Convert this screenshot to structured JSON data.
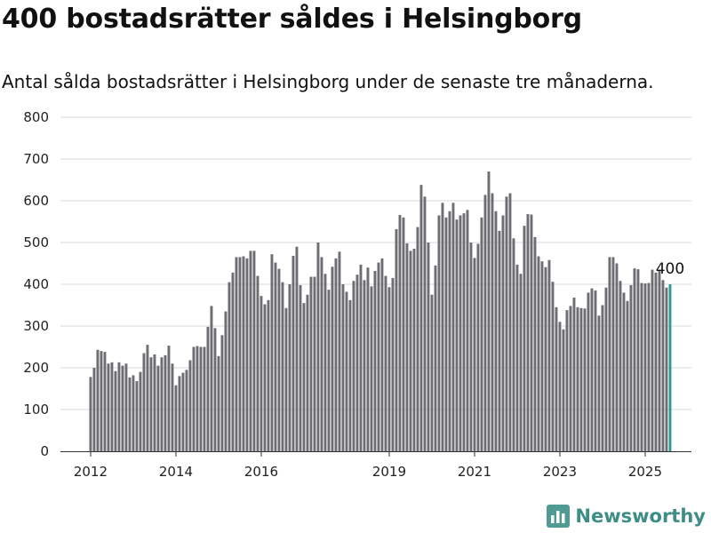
{
  "title": "400 bostadsrätter såldes i Helsingborg",
  "subtitle": "Antal sålda bostadsrätter i Helsingborg under de senaste tre månaderna.",
  "brand": {
    "name": "Newsworthy",
    "icon": "newsworthy-logo-icon"
  },
  "colors": {
    "bar": "#6e6d73",
    "highlight": "#2a9d8f",
    "grid": "#d9d9d9",
    "brand": "#3e8e87"
  },
  "chart_data": {
    "type": "bar",
    "ylim": [
      0,
      800
    ],
    "yticks": [
      0,
      100,
      200,
      300,
      400,
      500,
      600,
      700,
      800
    ],
    "x_tick_labels": [
      {
        "label": "2012",
        "index": 0
      },
      {
        "label": "2014",
        "index": 24
      },
      {
        "label": "2016",
        "index": 48
      },
      {
        "label": "2019",
        "index": 84
      },
      {
        "label": "2021",
        "index": 108
      },
      {
        "label": "2023",
        "index": 132
      },
      {
        "label": "2025",
        "index": 156
      }
    ],
    "values": [
      178,
      200,
      243,
      240,
      238,
      210,
      213,
      192,
      213,
      205,
      210,
      177,
      182,
      168,
      190,
      235,
      255,
      225,
      232,
      205,
      225,
      230,
      253,
      210,
      158,
      180,
      188,
      195,
      218,
      250,
      252,
      250,
      250,
      298,
      348,
      295,
      228,
      278,
      335,
      405,
      428,
      465,
      465,
      467,
      462,
      480,
      480,
      420,
      372,
      352,
      362,
      472,
      452,
      437,
      405,
      343,
      400,
      468,
      490,
      398,
      355,
      375,
      418,
      418,
      500,
      465,
      425,
      387,
      442,
      462,
      478,
      400,
      382,
      362,
      408,
      423,
      447,
      410,
      440,
      395,
      432,
      452,
      462,
      420,
      393,
      415,
      532,
      566,
      560,
      498,
      480,
      485,
      537,
      638,
      610,
      500,
      375,
      445,
      565,
      595,
      560,
      575,
      595,
      555,
      565,
      570,
      578,
      500,
      463,
      497,
      560,
      614,
      670,
      618,
      575,
      528,
      565,
      610,
      618,
      510,
      447,
      425,
      540,
      568,
      567,
      513,
      467,
      455,
      441,
      458,
      406,
      345,
      310,
      292,
      338,
      348,
      368,
      345,
      343,
      342,
      380,
      390,
      385,
      325,
      350,
      392,
      465,
      465,
      450,
      408,
      380,
      360,
      398,
      438,
      436,
      403,
      402,
      403,
      435,
      428,
      432,
      410,
      392,
      400
    ],
    "highlight_last": true,
    "annotations": [
      {
        "text": "400",
        "index": 163
      }
    ]
  }
}
